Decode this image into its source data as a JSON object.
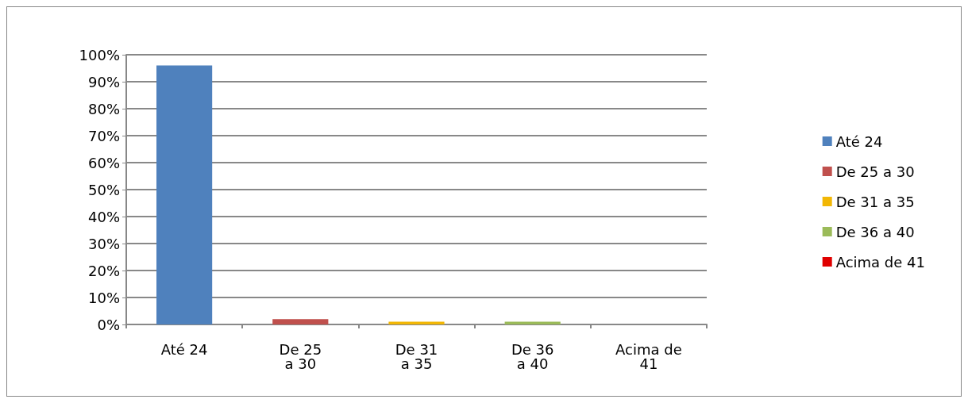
{
  "chart_data": {
    "type": "bar",
    "categories": [
      "Até 24",
      "De 25 a 30",
      "De 31 a 35",
      "De 36 a 40",
      "Acima de 41"
    ],
    "series": [
      {
        "name": "Até 24",
        "color": "#4f81bd",
        "values": [
          96,
          null,
          null,
          null,
          null
        ]
      },
      {
        "name": "De 25 a 30",
        "color": "#c0504d",
        "values": [
          null,
          2,
          null,
          null,
          null
        ]
      },
      {
        "name": "De 31 a 35",
        "color": "#f2b705",
        "values": [
          null,
          null,
          1,
          null,
          null
        ]
      },
      {
        "name": "De 36 a 40",
        "color": "#9bbb59",
        "values": [
          null,
          null,
          null,
          1,
          null
        ]
      },
      {
        "name": "Acima de 41",
        "color": "#e00000",
        "values": [
          null,
          null,
          null,
          null,
          0
        ]
      }
    ],
    "ylim": [
      0,
      100
    ],
    "yticks": [
      {
        "value": 0,
        "label": "0%"
      },
      {
        "value": 10,
        "label": "10%"
      },
      {
        "value": 20,
        "label": "20%"
      },
      {
        "value": 30,
        "label": "30%"
      },
      {
        "value": 40,
        "label": "40%"
      },
      {
        "value": 50,
        "label": "50%"
      },
      {
        "value": 60,
        "label": "60%"
      },
      {
        "value": 70,
        "label": "70%"
      },
      {
        "value": 80,
        "label": "80%"
      },
      {
        "value": 90,
        "label": "90%"
      },
      {
        "value": 100,
        "label": "100%"
      }
    ],
    "grid": "y",
    "legend": "right"
  }
}
